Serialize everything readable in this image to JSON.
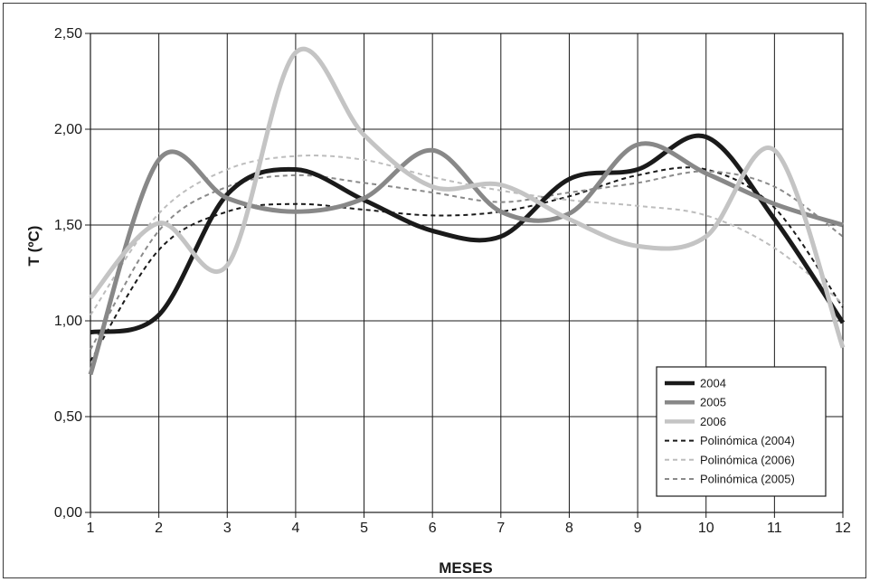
{
  "chart_data": {
    "type": "line",
    "title": "",
    "xlabel": "MESES",
    "ylabel": "T (ºC)",
    "x": [
      1,
      2,
      3,
      4,
      5,
      6,
      7,
      8,
      9,
      10,
      11,
      12
    ],
    "xlim": [
      1,
      12
    ],
    "ylim": [
      0,
      2.5
    ],
    "y_ticks": [
      0,
      0.5,
      1,
      1.5,
      2,
      2.5
    ],
    "y_tick_labels": [
      "0,00",
      "0,50",
      "1,00",
      "1,50",
      "2,00",
      "2,50"
    ],
    "x_tick_labels": [
      "1",
      "2",
      "3",
      "4",
      "5",
      "6",
      "7",
      "8",
      "9",
      "10",
      "11",
      "12"
    ],
    "grid": true,
    "legend_position": "bottom-right",
    "series": [
      {
        "name": "2004",
        "color": "#1a1a1a",
        "style": "solid",
        "width": 5,
        "values": [
          0.94,
          1.03,
          1.66,
          1.79,
          1.63,
          1.47,
          1.44,
          1.74,
          1.79,
          1.96,
          1.53,
          0.99
        ]
      },
      {
        "name": "2005",
        "color": "#888888",
        "style": "solid",
        "width": 5,
        "values": [
          0.72,
          1.84,
          1.64,
          1.57,
          1.64,
          1.89,
          1.57,
          1.56,
          1.92,
          1.77,
          1.61,
          1.5
        ]
      },
      {
        "name": "2006",
        "color": "#c4c4c4",
        "style": "solid",
        "width": 5,
        "values": [
          1.12,
          1.51,
          1.29,
          2.4,
          1.97,
          1.7,
          1.71,
          1.53,
          1.39,
          1.44,
          1.89,
          0.86
        ]
      },
      {
        "name": "Polinómica (2004)",
        "color": "#1a1a1a",
        "style": "dashed",
        "width": 2,
        "values": [
          0.79,
          1.37,
          1.57,
          1.61,
          1.58,
          1.55,
          1.57,
          1.65,
          1.76,
          1.79,
          1.59,
          1.07
        ]
      },
      {
        "name": "Polinómica (2006)",
        "color": "#bdbdbd",
        "style": "dashed",
        "width": 2,
        "values": [
          1.03,
          1.56,
          1.79,
          1.86,
          1.84,
          1.75,
          1.68,
          1.63,
          1.6,
          1.55,
          1.38,
          1.09
        ]
      },
      {
        "name": "Polinómica (2005)",
        "color": "#8a8a8a",
        "style": "dashed",
        "width": 2,
        "values": [
          0.85,
          1.47,
          1.7,
          1.76,
          1.72,
          1.67,
          1.62,
          1.67,
          1.72,
          1.78,
          1.7,
          1.44
        ]
      }
    ]
  }
}
